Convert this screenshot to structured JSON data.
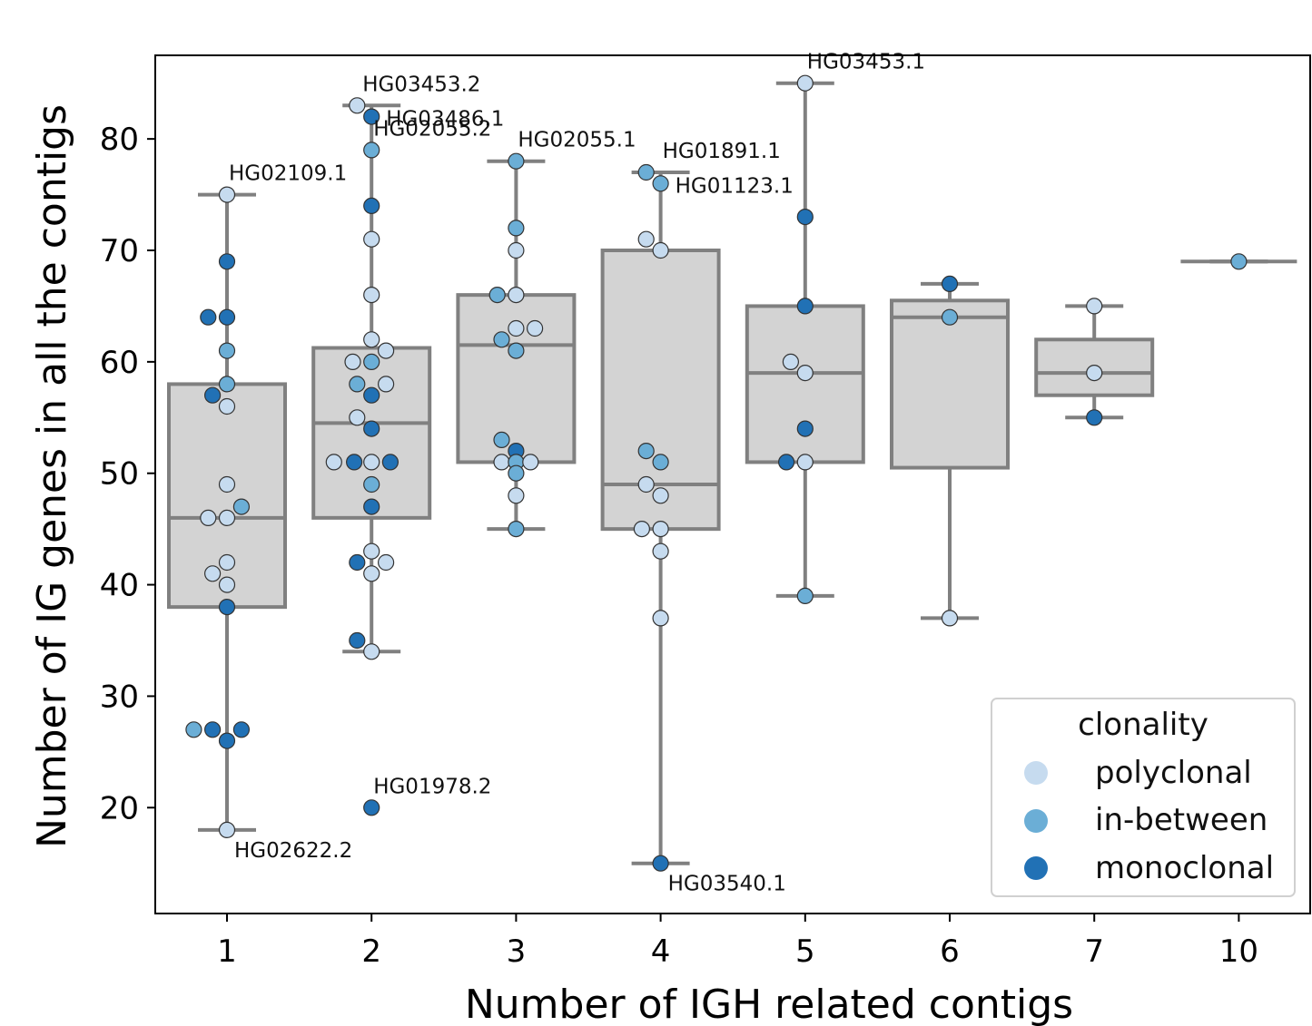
{
  "chart_data": {
    "type": "box",
    "xlabel": "Number of IGH related contigs",
    "ylabel": "Number of IG genes in all the contigs",
    "categories": [
      "1",
      "2",
      "3",
      "4",
      "5",
      "6",
      "7",
      "10"
    ],
    "ylim": [
      10.5,
      87.5
    ],
    "yticks": [
      20,
      30,
      40,
      50,
      60,
      70,
      80
    ],
    "grid": false,
    "legend": {
      "title": "clonality",
      "placement": "lower-right",
      "entries": [
        {
          "label": "polyclonal",
          "color": "#c6dbef"
        },
        {
          "label": "in-between",
          "color": "#6baed6"
        },
        {
          "label": "monoclonal",
          "color": "#2171b5"
        }
      ]
    },
    "colors": {
      "box_fill": "#d3d3d3",
      "box_line": "#808080",
      "axis": "#000000"
    },
    "boxes": [
      {
        "category": "1",
        "whisker_low": 18,
        "q1": 38,
        "median": 46,
        "q3": 58,
        "whisker_high": 75
      },
      {
        "category": "2",
        "whisker_low": 34,
        "q1": 46,
        "median": 54.5,
        "q3": 61.25,
        "whisker_high": 83
      },
      {
        "category": "3",
        "whisker_low": 45,
        "q1": 51,
        "median": 61.5,
        "q3": 66,
        "whisker_high": 78
      },
      {
        "category": "4",
        "whisker_low": 15,
        "q1": 45,
        "median": 49,
        "q3": 70,
        "whisker_high": 77
      },
      {
        "category": "5",
        "whisker_low": 39,
        "q1": 51,
        "median": 59,
        "q3": 65,
        "whisker_high": 85
      },
      {
        "category": "6",
        "whisker_low": 37,
        "q1": 50.5,
        "median": 64,
        "q3": 65.5,
        "whisker_high": 67
      },
      {
        "category": "7",
        "whisker_low": 55,
        "q1": 57,
        "median": 59,
        "q3": 62,
        "whisker_high": 65
      },
      {
        "category": "10",
        "whisker_low": 69,
        "q1": 69,
        "median": 69,
        "q3": 69,
        "whisker_high": 69
      }
    ],
    "points": [
      {
        "category": "1",
        "offset": 0,
        "y": 75,
        "clonality": "polyclonal"
      },
      {
        "category": "1",
        "offset": 0,
        "y": 69,
        "clonality": "monoclonal"
      },
      {
        "category": "1",
        "offset": -0.13,
        "y": 64,
        "clonality": "monoclonal"
      },
      {
        "category": "1",
        "offset": 0,
        "y": 64,
        "clonality": "monoclonal"
      },
      {
        "category": "1",
        "offset": 0,
        "y": 61,
        "clonality": "in-between"
      },
      {
        "category": "1",
        "offset": 0,
        "y": 58,
        "clonality": "in-between"
      },
      {
        "category": "1",
        "offset": -0.1,
        "y": 57,
        "clonality": "monoclonal"
      },
      {
        "category": "1",
        "offset": 0,
        "y": 56,
        "clonality": "polyclonal"
      },
      {
        "category": "1",
        "offset": 0,
        "y": 49,
        "clonality": "polyclonal"
      },
      {
        "category": "1",
        "offset": 0.1,
        "y": 47,
        "clonality": "in-between"
      },
      {
        "category": "1",
        "offset": -0.13,
        "y": 46,
        "clonality": "polyclonal"
      },
      {
        "category": "1",
        "offset": 0,
        "y": 46,
        "clonality": "polyclonal"
      },
      {
        "category": "1",
        "offset": 0,
        "y": 42,
        "clonality": "polyclonal"
      },
      {
        "category": "1",
        "offset": -0.1,
        "y": 41,
        "clonality": "polyclonal"
      },
      {
        "category": "1",
        "offset": 0,
        "y": 40,
        "clonality": "polyclonal"
      },
      {
        "category": "1",
        "offset": 0,
        "y": 38,
        "clonality": "monoclonal"
      },
      {
        "category": "1",
        "offset": -0.23,
        "y": 27,
        "clonality": "in-between"
      },
      {
        "category": "1",
        "offset": -0.1,
        "y": 27,
        "clonality": "monoclonal"
      },
      {
        "category": "1",
        "offset": 0.1,
        "y": 27,
        "clonality": "monoclonal"
      },
      {
        "category": "1",
        "offset": 0,
        "y": 26,
        "clonality": "monoclonal"
      },
      {
        "category": "1",
        "offset": 0,
        "y": 18,
        "clonality": "polyclonal"
      },
      {
        "category": "2",
        "offset": -0.1,
        "y": 83,
        "clonality": "polyclonal"
      },
      {
        "category": "2",
        "offset": 0,
        "y": 82,
        "clonality": "monoclonal"
      },
      {
        "category": "2",
        "offset": 0,
        "y": 79,
        "clonality": "in-between"
      },
      {
        "category": "2",
        "offset": 0,
        "y": 74,
        "clonality": "monoclonal"
      },
      {
        "category": "2",
        "offset": 0,
        "y": 71,
        "clonality": "polyclonal"
      },
      {
        "category": "2",
        "offset": 0,
        "y": 66,
        "clonality": "polyclonal"
      },
      {
        "category": "2",
        "offset": 0,
        "y": 62,
        "clonality": "polyclonal"
      },
      {
        "category": "2",
        "offset": 0.1,
        "y": 61,
        "clonality": "polyclonal"
      },
      {
        "category": "2",
        "offset": -0.13,
        "y": 60,
        "clonality": "polyclonal"
      },
      {
        "category": "2",
        "offset": 0,
        "y": 60,
        "clonality": "in-between"
      },
      {
        "category": "2",
        "offset": -0.1,
        "y": 58,
        "clonality": "in-between"
      },
      {
        "category": "2",
        "offset": 0.1,
        "y": 58,
        "clonality": "polyclonal"
      },
      {
        "category": "2",
        "offset": 0,
        "y": 57,
        "clonality": "monoclonal"
      },
      {
        "category": "2",
        "offset": -0.1,
        "y": 55,
        "clonality": "polyclonal"
      },
      {
        "category": "2",
        "offset": 0,
        "y": 54,
        "clonality": "monoclonal"
      },
      {
        "category": "2",
        "offset": -0.26,
        "y": 51,
        "clonality": "polyclonal"
      },
      {
        "category": "2",
        "offset": -0.12,
        "y": 51,
        "clonality": "monoclonal"
      },
      {
        "category": "2",
        "offset": 0,
        "y": 51,
        "clonality": "polyclonal"
      },
      {
        "category": "2",
        "offset": 0.13,
        "y": 51,
        "clonality": "monoclonal"
      },
      {
        "category": "2",
        "offset": 0,
        "y": 49,
        "clonality": "in-between"
      },
      {
        "category": "2",
        "offset": 0,
        "y": 47,
        "clonality": "monoclonal"
      },
      {
        "category": "2",
        "offset": 0,
        "y": 43,
        "clonality": "polyclonal"
      },
      {
        "category": "2",
        "offset": -0.1,
        "y": 42,
        "clonality": "monoclonal"
      },
      {
        "category": "2",
        "offset": 0.1,
        "y": 42,
        "clonality": "polyclonal"
      },
      {
        "category": "2",
        "offset": 0,
        "y": 41,
        "clonality": "polyclonal"
      },
      {
        "category": "2",
        "offset": -0.1,
        "y": 35,
        "clonality": "monoclonal"
      },
      {
        "category": "2",
        "offset": 0,
        "y": 34,
        "clonality": "polyclonal"
      },
      {
        "category": "2",
        "offset": 0,
        "y": 20,
        "clonality": "monoclonal"
      },
      {
        "category": "3",
        "offset": 0,
        "y": 78,
        "clonality": "in-between"
      },
      {
        "category": "3",
        "offset": 0,
        "y": 72,
        "clonality": "in-between"
      },
      {
        "category": "3",
        "offset": 0,
        "y": 70,
        "clonality": "polyclonal"
      },
      {
        "category": "3",
        "offset": -0.13,
        "y": 66,
        "clonality": "in-between"
      },
      {
        "category": "3",
        "offset": 0,
        "y": 66,
        "clonality": "polyclonal"
      },
      {
        "category": "3",
        "offset": 0,
        "y": 63,
        "clonality": "polyclonal"
      },
      {
        "category": "3",
        "offset": 0.13,
        "y": 63,
        "clonality": "polyclonal"
      },
      {
        "category": "3",
        "offset": -0.1,
        "y": 62,
        "clonality": "in-between"
      },
      {
        "category": "3",
        "offset": 0,
        "y": 61,
        "clonality": "in-between"
      },
      {
        "category": "3",
        "offset": -0.1,
        "y": 53,
        "clonality": "in-between"
      },
      {
        "category": "3",
        "offset": 0,
        "y": 52,
        "clonality": "monoclonal"
      },
      {
        "category": "3",
        "offset": -0.1,
        "y": 51,
        "clonality": "polyclonal"
      },
      {
        "category": "3",
        "offset": 0,
        "y": 51,
        "clonality": "in-between"
      },
      {
        "category": "3",
        "offset": 0.1,
        "y": 51,
        "clonality": "polyclonal"
      },
      {
        "category": "3",
        "offset": 0,
        "y": 50,
        "clonality": "in-between"
      },
      {
        "category": "3",
        "offset": 0,
        "y": 48,
        "clonality": "polyclonal"
      },
      {
        "category": "3",
        "offset": 0,
        "y": 45,
        "clonality": "in-between"
      },
      {
        "category": "4",
        "offset": -0.1,
        "y": 77,
        "clonality": "in-between"
      },
      {
        "category": "4",
        "offset": 0,
        "y": 76,
        "clonality": "in-between"
      },
      {
        "category": "4",
        "offset": -0.1,
        "y": 71,
        "clonality": "polyclonal"
      },
      {
        "category": "4",
        "offset": 0,
        "y": 70,
        "clonality": "polyclonal"
      },
      {
        "category": "4",
        "offset": -0.1,
        "y": 52,
        "clonality": "in-between"
      },
      {
        "category": "4",
        "offset": 0,
        "y": 51,
        "clonality": "in-between"
      },
      {
        "category": "4",
        "offset": -0.1,
        "y": 49,
        "clonality": "polyclonal"
      },
      {
        "category": "4",
        "offset": 0,
        "y": 48,
        "clonality": "polyclonal"
      },
      {
        "category": "4",
        "offset": -0.13,
        "y": 45,
        "clonality": "polyclonal"
      },
      {
        "category": "4",
        "offset": 0,
        "y": 45,
        "clonality": "polyclonal"
      },
      {
        "category": "4",
        "offset": 0,
        "y": 43,
        "clonality": "polyclonal"
      },
      {
        "category": "4",
        "offset": 0,
        "y": 37,
        "clonality": "polyclonal"
      },
      {
        "category": "4",
        "offset": 0,
        "y": 15,
        "clonality": "monoclonal"
      },
      {
        "category": "5",
        "offset": 0,
        "y": 85,
        "clonality": "polyclonal"
      },
      {
        "category": "5",
        "offset": 0,
        "y": 73,
        "clonality": "monoclonal"
      },
      {
        "category": "5",
        "offset": 0,
        "y": 65,
        "clonality": "monoclonal"
      },
      {
        "category": "5",
        "offset": -0.1,
        "y": 60,
        "clonality": "polyclonal"
      },
      {
        "category": "5",
        "offset": 0,
        "y": 59,
        "clonality": "polyclonal"
      },
      {
        "category": "5",
        "offset": 0,
        "y": 54,
        "clonality": "monoclonal"
      },
      {
        "category": "5",
        "offset": -0.13,
        "y": 51,
        "clonality": "monoclonal"
      },
      {
        "category": "5",
        "offset": 0,
        "y": 51,
        "clonality": "polyclonal"
      },
      {
        "category": "5",
        "offset": 0,
        "y": 39,
        "clonality": "in-between"
      },
      {
        "category": "6",
        "offset": 0,
        "y": 67,
        "clonality": "monoclonal"
      },
      {
        "category": "6",
        "offset": 0,
        "y": 64,
        "clonality": "in-between"
      },
      {
        "category": "6",
        "offset": 0,
        "y": 37,
        "clonality": "polyclonal"
      },
      {
        "category": "7",
        "offset": 0,
        "y": 65,
        "clonality": "polyclonal"
      },
      {
        "category": "7",
        "offset": 0,
        "y": 59,
        "clonality": "polyclonal"
      },
      {
        "category": "7",
        "offset": 0,
        "y": 55,
        "clonality": "monoclonal"
      },
      {
        "category": "10",
        "offset": 0,
        "y": 69,
        "clonality": "in-between"
      }
    ],
    "annotations": [
      {
        "text": "HG02109.1",
        "category": "1",
        "y": 75,
        "anchor": "upper-right"
      },
      {
        "text": "HG02622.2",
        "category": "1",
        "y": 18,
        "anchor": "lower-right"
      },
      {
        "text": "HG03453.2",
        "category": "2",
        "y": 83,
        "anchor": "upper"
      },
      {
        "text": "HG03486.1",
        "category": "2",
        "y": 82,
        "anchor": "right"
      },
      {
        "text": "HG02055.2",
        "category": "2",
        "y": 79,
        "anchor": "upper-right"
      },
      {
        "text": "HG01978.2",
        "category": "2",
        "y": 20,
        "anchor": "upper-right"
      },
      {
        "text": "HG02055.1",
        "category": "3",
        "y": 78,
        "anchor": "upper-right"
      },
      {
        "text": "HG01891.1",
        "category": "4",
        "y": 77,
        "anchor": "upper-right"
      },
      {
        "text": "HG01123.1",
        "category": "4",
        "y": 76,
        "anchor": "right"
      },
      {
        "text": "HG03540.1",
        "category": "4",
        "y": 15,
        "anchor": "lower-right"
      },
      {
        "text": "HG03453.1",
        "category": "5",
        "y": 85,
        "anchor": "upper-right"
      }
    ]
  }
}
